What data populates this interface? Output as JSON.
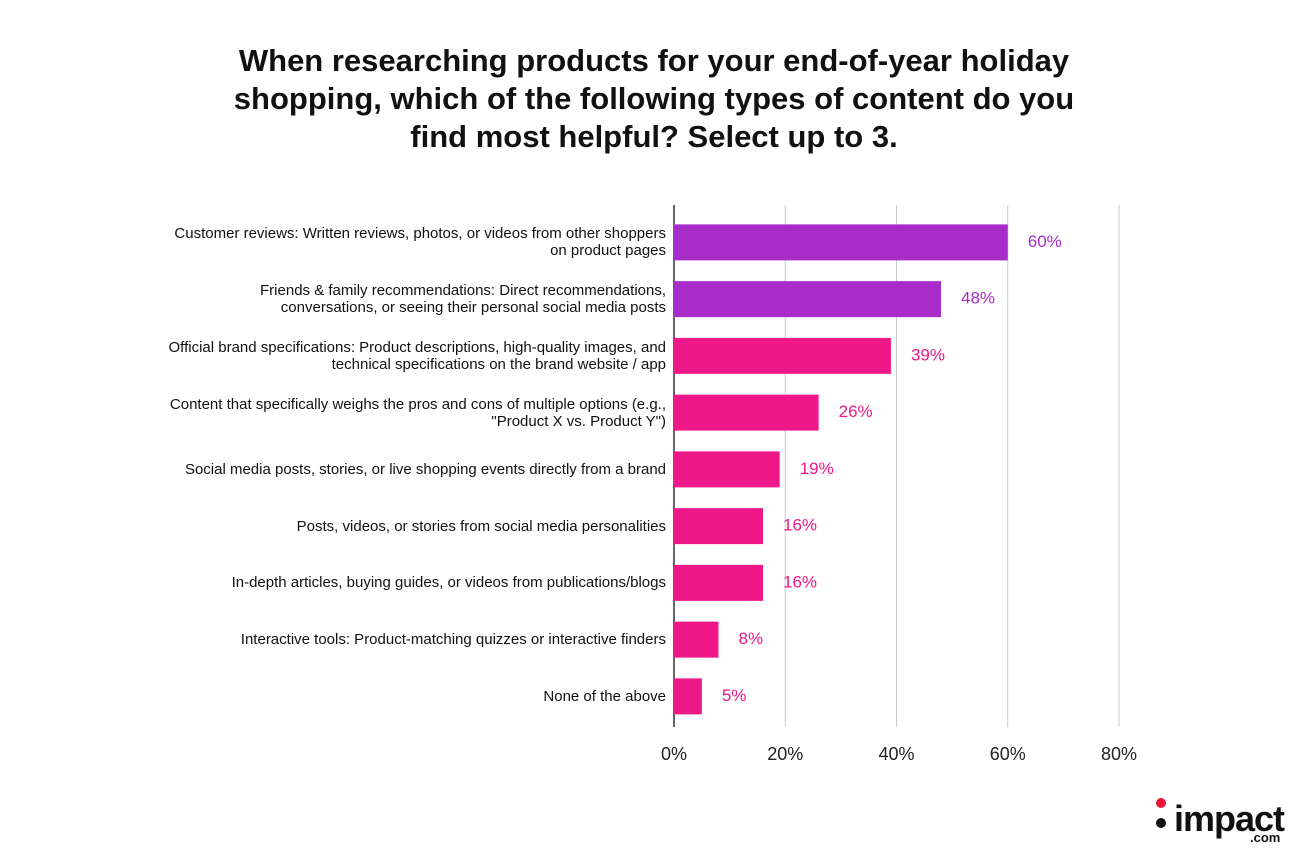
{
  "chart_data": {
    "type": "hbar",
    "title": "When researching products for your end-of-year holiday shopping, which of the following types of content do you find most helpful? Select up to 3.",
    "categories": [
      "Customer reviews: Written reviews, photos, or videos from other shoppers on product pages",
      "Friends & family recommendations: Direct recommendations, conversations, or seeing their personal social media posts",
      "Official brand specifications: Product descriptions, high-quality images, and technical specifications on the brand website / app",
      "Content that specifically weighs the pros and cons of multiple options (e.g., \"Product X vs. Product Y\")",
      "Social media posts, stories, or live shopping events directly from a brand",
      "Posts, videos, or stories from social media personalities",
      "In-depth articles, buying guides, or videos from publications/blogs",
      "Interactive tools: Product-matching quizzes or interactive finders",
      "None of the above"
    ],
    "values": [
      60,
      48,
      39,
      26,
      19,
      16,
      16,
      8,
      5
    ],
    "value_labels": [
      "60%",
      "48%",
      "39%",
      "26%",
      "19%",
      "16%",
      "16%",
      "8%",
      "5%"
    ],
    "colors": [
      "#a82cc7",
      "#a82cc7",
      "#ee1889",
      "#ee1889",
      "#ee1889",
      "#ee1889",
      "#ee1889",
      "#ee1889",
      "#ee1889"
    ],
    "xlim": [
      0,
      80
    ],
    "xticks": [
      {
        "value": 0,
        "label": "0%"
      },
      {
        "value": 20,
        "label": "20%"
      },
      {
        "value": 40,
        "label": "40%"
      },
      {
        "value": 60,
        "label": "60%"
      },
      {
        "value": 80,
        "label": "80%"
      }
    ],
    "grid": true
  },
  "logo": {
    "name": "impact",
    "suffix": ".com"
  }
}
